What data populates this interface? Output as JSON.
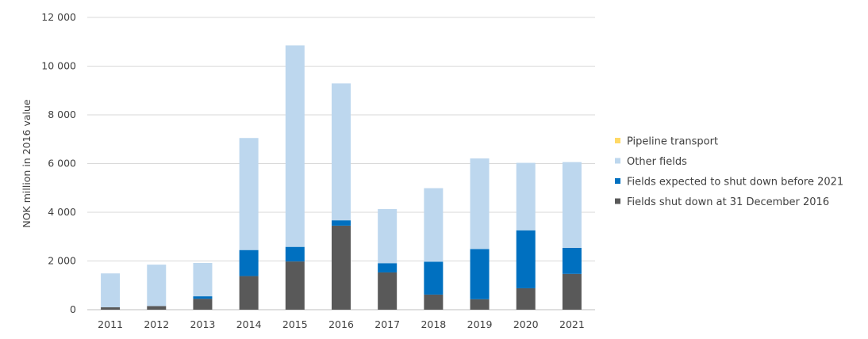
{
  "chart_data": {
    "type": "bar",
    "stacked": true,
    "categories": [
      "2011",
      "2012",
      "2013",
      "2014",
      "2015",
      "2016",
      "2017",
      "2018",
      "2019",
      "2020",
      "2021"
    ],
    "ylabel": "NOK million in 2016 value",
    "ylim": [
      0,
      12000
    ],
    "yticks": [
      0,
      2000,
      4000,
      6000,
      8000,
      10000,
      12000
    ],
    "ytick_labels": [
      "0",
      "2 000",
      "4 000",
      "6 000",
      "8 000",
      "10 000",
      "12 000"
    ],
    "grid": true,
    "legend_position": "right",
    "series": [
      {
        "name": "Fields shut down at 31 December 2016",
        "color": "#595959",
        "values": [
          100,
          150,
          450,
          1380,
          1980,
          3450,
          1530,
          620,
          430,
          880,
          1470
        ]
      },
      {
        "name": "Fields expected to shut down before 2021",
        "color": "#0070C0",
        "values": [
          0,
          0,
          100,
          1070,
          600,
          220,
          380,
          1350,
          2060,
          2380,
          1070
        ]
      },
      {
        "name": "Other fields",
        "color": "#BDD7EE",
        "values": [
          1390,
          1700,
          1370,
          4600,
          8270,
          5620,
          2220,
          3020,
          3720,
          2770,
          3520
        ]
      },
      {
        "name": "Pipeline transport",
        "color": "#FFD966",
        "values": [
          0,
          0,
          0,
          0,
          0,
          0,
          0,
          0,
          0,
          0,
          0
        ]
      }
    ],
    "legend_order": [
      "Pipeline transport",
      "Other fields",
      "Fields expected to shut down before 2021",
      "Fields shut down at 31 December 2016"
    ]
  }
}
